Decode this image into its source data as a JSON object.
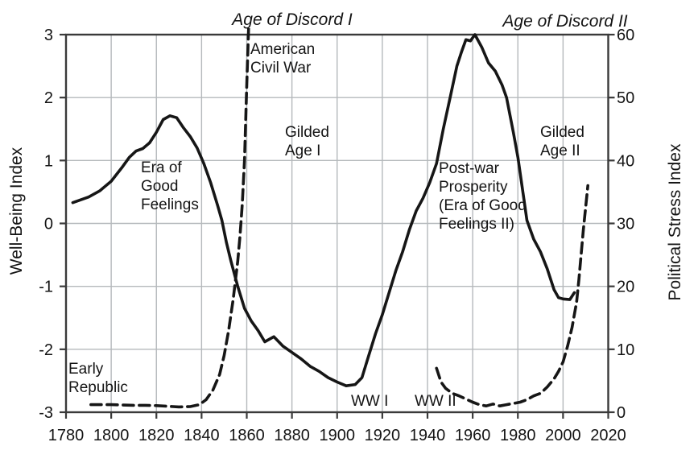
{
  "annotations": {
    "age_of_discord_1": "Age of Discord I",
    "age_of_discord_2": "Age of Discord II",
    "american_civil_war": "American\nCivil War",
    "gilded_age_1": "Gilded\nAge I",
    "era_of_good_feelings": "Era of\nGood\nFeelings",
    "early_republic": "Early\nRepublic",
    "postwar_prosperity": "Post-war\nProsperity\n(Era of Good\nFeelings II)",
    "gilded_age_2": "Gilded\nAge II",
    "ww1": "WW I",
    "ww2": "WW II"
  },
  "chart_data": {
    "type": "line",
    "grid": true,
    "x_axis": {
      "min": 1780,
      "max": 2020,
      "ticks": [
        1780,
        1800,
        1820,
        1840,
        1860,
        1880,
        1900,
        1920,
        1940,
        1960,
        1980,
        2000,
        2020
      ]
    },
    "left_y_axis": {
      "title": "Well-Being Index",
      "min": -3,
      "max": 3,
      "ticks": [
        3,
        2,
        1,
        0,
        -1,
        -2,
        -3
      ]
    },
    "right_y_axis": {
      "title": "Political Stress Index",
      "min": 0,
      "max": 60,
      "ticks": [
        60,
        50,
        40,
        30,
        20,
        10,
        0
      ]
    },
    "colors": {
      "line": "#161616",
      "grid": "#b5b9bc",
      "axis": "#3a3a3a",
      "text": "#141414"
    },
    "series": [
      {
        "name": "Well-Being Index",
        "axis": "left",
        "style": "solid",
        "segments": [
          [
            [
              1783,
              0.33
            ],
            [
              1790,
              0.42
            ],
            [
              1795,
              0.52
            ],
            [
              1800,
              0.67
            ],
            [
              1805,
              0.9
            ],
            [
              1808,
              1.05
            ],
            [
              1811,
              1.15
            ],
            [
              1814,
              1.19
            ],
            [
              1817,
              1.28
            ],
            [
              1820,
              1.45
            ],
            [
              1823,
              1.65
            ],
            [
              1826,
              1.71
            ],
            [
              1829,
              1.68
            ],
            [
              1832,
              1.52
            ],
            [
              1835,
              1.38
            ],
            [
              1838,
              1.2
            ],
            [
              1841,
              0.95
            ],
            [
              1844,
              0.65
            ],
            [
              1847,
              0.3
            ],
            [
              1849,
              0.05
            ],
            [
              1851,
              -0.3
            ],
            [
              1853,
              -0.6
            ],
            [
              1856,
              -1.0
            ],
            [
              1859,
              -1.35
            ],
            [
              1862,
              -1.55
            ],
            [
              1865,
              -1.7
            ],
            [
              1868,
              -1.88
            ],
            [
              1872,
              -1.8
            ],
            [
              1876,
              -1.95
            ],
            [
              1880,
              -2.05
            ],
            [
              1884,
              -2.15
            ],
            [
              1888,
              -2.27
            ],
            [
              1892,
              -2.35
            ],
            [
              1896,
              -2.45
            ],
            [
              1900,
              -2.52
            ],
            [
              1904,
              -2.58
            ],
            [
              1908,
              -2.56
            ],
            [
              1911,
              -2.45
            ],
            [
              1914,
              -2.1
            ],
            [
              1917,
              -1.75
            ],
            [
              1920,
              -1.45
            ],
            [
              1923,
              -1.1
            ],
            [
              1926,
              -0.75
            ],
            [
              1929,
              -0.45
            ],
            [
              1932,
              -0.1
            ],
            [
              1935,
              0.2
            ],
            [
              1938,
              0.4
            ],
            [
              1941,
              0.65
            ],
            [
              1944,
              0.95
            ],
            [
              1947,
              1.5
            ],
            [
              1950,
              2.0
            ],
            [
              1953,
              2.5
            ],
            [
              1955,
              2.72
            ],
            [
              1957,
              2.92
            ],
            [
              1959,
              2.9
            ],
            [
              1961,
              3.0
            ],
            [
              1964,
              2.8
            ],
            [
              1967,
              2.55
            ],
            [
              1970,
              2.42
            ],
            [
              1973,
              2.2
            ],
            [
              1975,
              2.0
            ],
            [
              1978,
              1.45
            ],
            [
              1980,
              1.05
            ],
            [
              1982,
              0.55
            ],
            [
              1984,
              0.05
            ],
            [
              1987,
              -0.25
            ],
            [
              1990,
              -0.45
            ],
            [
              1993,
              -0.72
            ],
            [
              1996,
              -1.05
            ],
            [
              1998,
              -1.18
            ],
            [
              2000,
              -1.2
            ],
            [
              2003,
              -1.21
            ],
            [
              2005,
              -1.1
            ]
          ]
        ]
      },
      {
        "name": "Political Stress Index",
        "axis": "right",
        "style": "dashed",
        "segments": [
          [
            [
              1791,
              1.2
            ],
            [
              1795,
              1.2
            ],
            [
              1800,
              1.2
            ],
            [
              1805,
              1.15
            ],
            [
              1810,
              1.1
            ],
            [
              1815,
              1.1
            ],
            [
              1820,
              1.05
            ],
            [
              1825,
              0.95
            ],
            [
              1830,
              0.85
            ],
            [
              1835,
              0.9
            ],
            [
              1839,
              1.2
            ],
            [
              1842,
              2.0
            ],
            [
              1845,
              3.5
            ],
            [
              1848,
              6.0
            ],
            [
              1850,
              9.0
            ],
            [
              1852,
              13.0
            ],
            [
              1854,
              18.0
            ],
            [
              1856,
              24.0
            ],
            [
              1857,
              28.0
            ],
            [
              1858,
              33.0
            ],
            [
              1859,
              40.0
            ],
            [
              1860,
              52.0
            ],
            [
              1861,
              63.0
            ]
          ],
          [
            [
              1944,
              7.0
            ],
            [
              1946,
              4.8
            ],
            [
              1948,
              3.8
            ],
            [
              1951,
              3.0
            ],
            [
              1954,
              2.6
            ],
            [
              1957,
              2.1
            ],
            [
              1960,
              1.6
            ],
            [
              1963,
              1.2
            ],
            [
              1966,
              1.0
            ],
            [
              1969,
              1.3
            ],
            [
              1972,
              1.0
            ],
            [
              1975,
              1.2
            ],
            [
              1978,
              1.4
            ],
            [
              1981,
              1.6
            ],
            [
              1984,
              2.0
            ],
            [
              1987,
              2.6
            ],
            [
              1990,
              3.0
            ],
            [
              1993,
              4.0
            ],
            [
              1996,
              5.3
            ],
            [
              1998,
              6.5
            ],
            [
              2000,
              8.0
            ],
            [
              2002,
              10.5
            ],
            [
              2004,
              13.5
            ],
            [
              2006,
              17.5
            ],
            [
              2007,
              21.0
            ],
            [
              2008,
              25.0
            ],
            [
              2009,
              29.0
            ],
            [
              2010,
              32.5
            ],
            [
              2011,
              36.0
            ]
          ]
        ]
      }
    ]
  }
}
